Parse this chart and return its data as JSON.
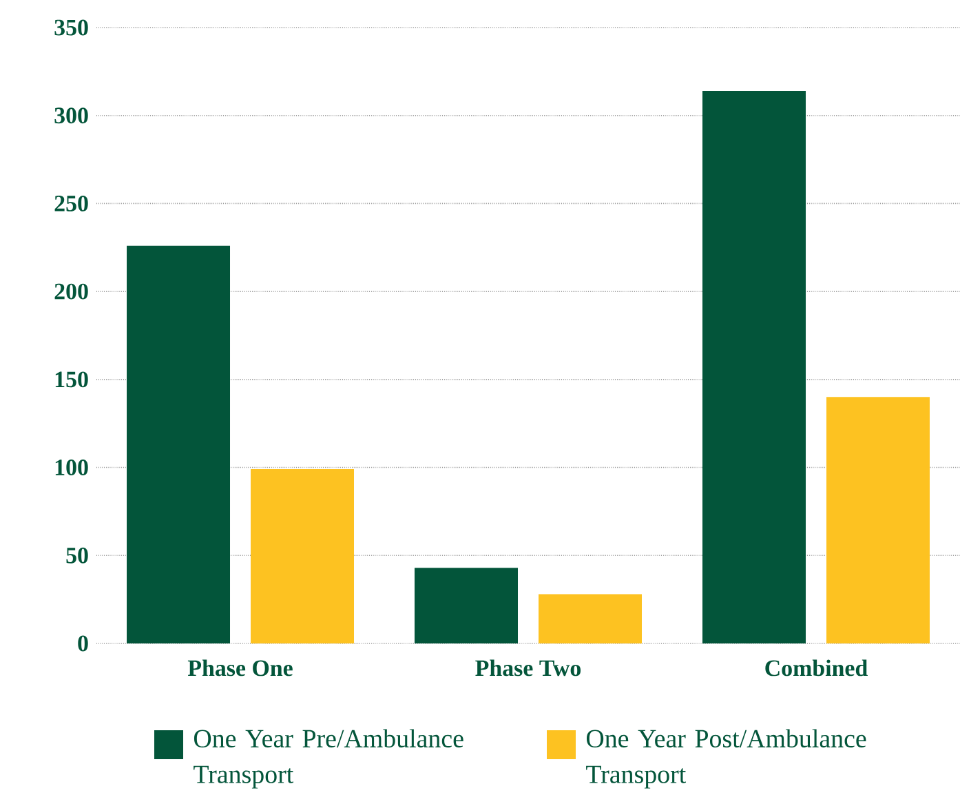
{
  "chart_data": {
    "type": "bar",
    "categories": [
      "Phase One",
      "Phase Two",
      "Combined"
    ],
    "series": [
      {
        "name": "One Year Pre/Ambulance Transport",
        "color": "#03553a",
        "values": [
          226,
          43,
          314
        ]
      },
      {
        "name": "One Year Post/Ambulance Transport",
        "color": "#fdc221",
        "values": [
          99,
          28,
          140
        ]
      }
    ],
    "ylim": [
      0,
      350
    ],
    "yticks": [
      0,
      50,
      100,
      150,
      200,
      250,
      300,
      350
    ],
    "grid": "y",
    "legend": "bottom"
  }
}
